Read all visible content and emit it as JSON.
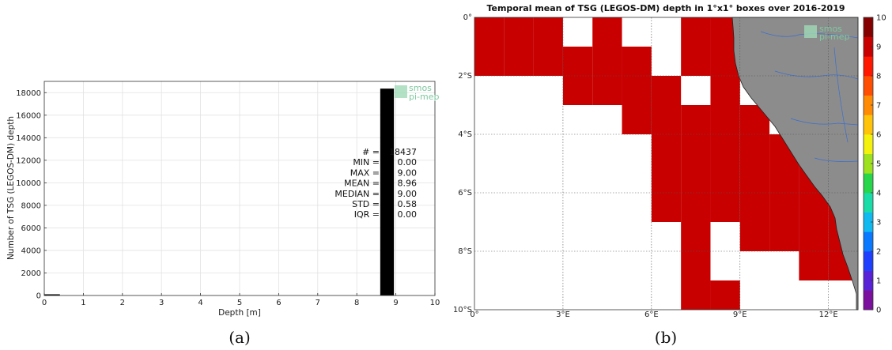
{
  "chart_data": [
    {
      "type": "bar",
      "xlabel": "Depth [m]",
      "ylabel": "Number of TSG (LEGOS-DM) depth",
      "xlim": [
        0,
        10
      ],
      "ylim": [
        0,
        19000
      ],
      "xticks": [
        "0",
        "1",
        "2",
        "3",
        "4",
        "5",
        "6",
        "7",
        "8",
        "9",
        "10"
      ],
      "yticks": [
        "0",
        "2000",
        "4000",
        "6000",
        "8000",
        "10000",
        "12000",
        "14000",
        "16000",
        "18000"
      ],
      "bins": [
        {
          "x0": 0.0,
          "x1": 0.4,
          "count": 80
        },
        {
          "x0": 8.6,
          "x1": 8.95,
          "count": 18357
        }
      ],
      "grid": true,
      "stats": [
        {
          "label": "#",
          "value": "18437"
        },
        {
          "label": "MIN",
          "value": "0.00"
        },
        {
          "label": "MAX",
          "value": "9.00"
        },
        {
          "label": "MEAN",
          "value": "8.96"
        },
        {
          "label": "MEDIAN",
          "value": "9.00"
        },
        {
          "label": "STD",
          "value": "0.58"
        },
        {
          "label": "IQR",
          "value": "0.00"
        }
      ],
      "logo": [
        "smos",
        "pi-mep"
      ],
      "bar_color": "#000000"
    },
    {
      "type": "heatmap",
      "title": "Temporal mean of TSG (LEGOS-DM) depth in 1°x1° boxes over 2016-2019",
      "xlim": [
        0,
        13
      ],
      "ylim": [
        -10,
        0
      ],
      "xticks": [
        "0°",
        "3°E",
        "6°E",
        "9°E",
        "12°E"
      ],
      "yticks": [
        "0°",
        "2°S",
        "4°S",
        "6°S",
        "8°S",
        "10°S"
      ],
      "grid": true,
      "colorbar": {
        "min": 0,
        "max": 10,
        "ticks": [
          "0",
          "1",
          "2",
          "3",
          "4",
          "5",
          "6",
          "7",
          "8",
          "9",
          "10"
        ],
        "colors": [
          "#7b0f9e",
          "#5a22d6",
          "#1f3fff",
          "#0a78ff",
          "#10b9f0",
          "#19dca8",
          "#27d64a",
          "#9ee21f",
          "#f4f20d",
          "#ffc40a",
          "#ff8a04",
          "#ff4d02",
          "#ff1700",
          "#c80000",
          "#850000"
        ]
      },
      "land_color": "#8c8c8c",
      "logo": [
        "smos",
        "pi-mep"
      ],
      "cells": [
        {
          "lon": 0,
          "lat": 0,
          "value": 9.0
        },
        {
          "lon": 1,
          "lat": 0,
          "value": 9.0
        },
        {
          "lon": 2,
          "lat": 0,
          "value": 9.0
        },
        {
          "lon": 4,
          "lat": 0,
          "value": 8.8
        },
        {
          "lon": 7,
          "lat": 0,
          "value": 8.8
        },
        {
          "lon": 8,
          "lat": 0,
          "value": 9.0
        },
        {
          "lon": 0,
          "lat": -1,
          "value": 8.8
        },
        {
          "lon": 1,
          "lat": -1,
          "value": 8.8
        },
        {
          "lon": 2,
          "lat": -1,
          "value": 9.0
        },
        {
          "lon": 3,
          "lat": -1,
          "value": 9.0
        },
        {
          "lon": 4,
          "lat": -1,
          "value": 8.8
        },
        {
          "lon": 5,
          "lat": -1,
          "value": 8.8
        },
        {
          "lon": 7,
          "lat": -1,
          "value": 8.8
        },
        {
          "lon": 8,
          "lat": -1,
          "value": 9.0
        },
        {
          "lon": 3,
          "lat": -2,
          "value": 8.8
        },
        {
          "lon": 4,
          "lat": -2,
          "value": 8.8
        },
        {
          "lon": 5,
          "lat": -2,
          "value": 9.0
        },
        {
          "lon": 6,
          "lat": -2,
          "value": 9.0
        },
        {
          "lon": 8,
          "lat": -2,
          "value": 9.0
        },
        {
          "lon": 5,
          "lat": -3,
          "value": 8.8
        },
        {
          "lon": 6,
          "lat": -3,
          "value": 9.0
        },
        {
          "lon": 7,
          "lat": -3,
          "value": 9.0
        },
        {
          "lon": 8,
          "lat": -3,
          "value": 9.0
        },
        {
          "lon": 9,
          "lat": -3,
          "value": 9.0
        },
        {
          "lon": 6,
          "lat": -4,
          "value": 8.8
        },
        {
          "lon": 7,
          "lat": -4,
          "value": 8.8
        },
        {
          "lon": 8,
          "lat": -4,
          "value": 8.8
        },
        {
          "lon": 9,
          "lat": -4,
          "value": 9.0
        },
        {
          "lon": 10,
          "lat": -4,
          "value": 9.0
        },
        {
          "lon": 6,
          "lat": -5,
          "value": 8.8
        },
        {
          "lon": 7,
          "lat": -5,
          "value": 8.8
        },
        {
          "lon": 8,
          "lat": -5,
          "value": 8.8
        },
        {
          "lon": 9,
          "lat": -5,
          "value": 9.0
        },
        {
          "lon": 10,
          "lat": -5,
          "value": 9.0
        },
        {
          "lon": 11,
          "lat": -5,
          "value": 9.0
        },
        {
          "lon": 6,
          "lat": -6,
          "value": 8.8
        },
        {
          "lon": 7,
          "lat": -6,
          "value": 8.8
        },
        {
          "lon": 8,
          "lat": -6,
          "value": 8.8
        },
        {
          "lon": 9,
          "lat": -6,
          "value": 8.8
        },
        {
          "lon": 10,
          "lat": -6,
          "value": 9.0
        },
        {
          "lon": 11,
          "lat": -6,
          "value": 8.8
        },
        {
          "lon": 12,
          "lat": -6,
          "value": 8.8
        },
        {
          "lon": 7,
          "lat": -7,
          "value": 8.8
        },
        {
          "lon": 9,
          "lat": -7,
          "value": 8.8
        },
        {
          "lon": 10,
          "lat": -7,
          "value": 8.8
        },
        {
          "lon": 11,
          "lat": -7,
          "value": 9.0
        },
        {
          "lon": 12,
          "lat": -7,
          "value": 9.0
        },
        {
          "lon": 7,
          "lat": -8,
          "value": 8.8
        },
        {
          "lon": 11,
          "lat": -8,
          "value": 8.8
        },
        {
          "lon": 12,
          "lat": -8,
          "value": 9.0
        },
        {
          "lon": 7,
          "lat": -9,
          "value": 9.0
        },
        {
          "lon": 8,
          "lat": -9,
          "value": 9.0
        }
      ]
    }
  ],
  "captions": [
    "(a)",
    "(b)"
  ]
}
